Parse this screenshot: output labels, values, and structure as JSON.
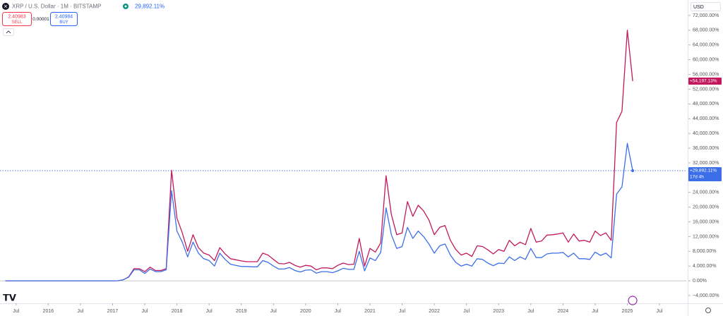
{
  "header": {
    "symbol": "XRP / U.S. Dollar · 1M · BITSTAMP",
    "change": "29,892.11%",
    "sell_price": "2.40983",
    "sell": "SELL",
    "spread": "0.00001",
    "buy_price": "2.40984",
    "buy": "BUY",
    "currency": "USD",
    "countdown": "17d 4h"
  },
  "price_labels": [
    "+54,197.13%",
    "+29,892.11%"
  ],
  "chart_data": {
    "type": "line",
    "grid": false,
    "x": [
      "2015-05",
      "2015-06",
      "2015-07",
      "2015-08",
      "2015-09",
      "2015-10",
      "2015-11",
      "2015-12",
      "2016-01",
      "2016-02",
      "2016-03",
      "2016-04",
      "2016-05",
      "2016-06",
      "2016-07",
      "2016-08",
      "2016-09",
      "2016-10",
      "2016-11",
      "2016-12",
      "2017-01",
      "2017-02",
      "2017-03",
      "2017-04",
      "2017-05",
      "2017-06",
      "2017-07",
      "2017-08",
      "2017-09",
      "2017-10",
      "2017-11",
      "2017-12",
      "2018-01",
      "2018-02",
      "2018-03",
      "2018-04",
      "2018-05",
      "2018-06",
      "2018-07",
      "2018-08",
      "2018-09",
      "2018-10",
      "2018-11",
      "2018-12",
      "2019-01",
      "2019-02",
      "2019-03",
      "2019-04",
      "2019-05",
      "2019-06",
      "2019-07",
      "2019-08",
      "2019-09",
      "2019-10",
      "2019-11",
      "2019-12",
      "2020-01",
      "2020-02",
      "2020-03",
      "2020-04",
      "2020-05",
      "2020-06",
      "2020-07",
      "2020-08",
      "2020-09",
      "2020-10",
      "2020-11",
      "2020-12",
      "2021-01",
      "2021-02",
      "2021-03",
      "2021-04",
      "2021-05",
      "2021-06",
      "2021-07",
      "2021-08",
      "2021-09",
      "2021-10",
      "2021-11",
      "2021-12",
      "2022-01",
      "2022-02",
      "2022-03",
      "2022-04",
      "2022-05",
      "2022-06",
      "2022-07",
      "2022-08",
      "2022-09",
      "2022-10",
      "2022-11",
      "2022-12",
      "2023-01",
      "2023-02",
      "2023-03",
      "2023-04",
      "2023-05",
      "2023-06",
      "2023-07",
      "2023-08",
      "2023-09",
      "2023-10",
      "2023-11",
      "2023-12",
      "2024-01",
      "2024-02",
      "2024-03",
      "2024-04",
      "2024-05",
      "2024-06",
      "2024-07",
      "2024-08",
      "2024-09",
      "2024-10",
      "2024-11",
      "2024-12",
      "2025-01",
      "2025-02"
    ],
    "series": [
      {
        "color": "#c2185b",
        "values": [
          0,
          0,
          0,
          0,
          0,
          0,
          0,
          0,
          0,
          0,
          0,
          0,
          0,
          0,
          0,
          0,
          0,
          0,
          0,
          0,
          0,
          20,
          300,
          1100,
          3300,
          3300,
          2500,
          3700,
          2800,
          2800,
          3300,
          30000,
          17000,
          13000,
          8000,
          12500,
          9000,
          7500,
          7000,
          5500,
          9000,
          7300,
          6000,
          5700,
          5400,
          5200,
          5200,
          5200,
          7500,
          7000,
          5800,
          4700,
          4600,
          5000,
          4200,
          3700,
          4200,
          4000,
          3000,
          3500,
          3500,
          3300,
          4200,
          4800,
          4400,
          4500,
          11500,
          4000,
          8800,
          7800,
          10300,
          28500,
          18000,
          12500,
          13000,
          21500,
          17500,
          20500,
          19000,
          16500,
          12500,
          14500,
          15000,
          11000,
          8500,
          7000,
          7500,
          6600,
          9500,
          9300,
          8400,
          7300,
          8500,
          8000,
          11000,
          9500,
          10500,
          9800,
          14200,
          10500,
          10800,
          12400,
          12500,
          12700,
          13000,
          10500,
          12700,
          10800,
          11000,
          10500,
          13500,
          12300,
          13000,
          11000,
          43000,
          46000,
          68000,
          54197.13
        ]
      },
      {
        "color": "#3b6ee8",
        "values": [
          0,
          0,
          0,
          0,
          0,
          0,
          0,
          0,
          0,
          0,
          0,
          0,
          0,
          0,
          0,
          0,
          0,
          0,
          0,
          0,
          0,
          20,
          300,
          1000,
          3000,
          3000,
          2000,
          3200,
          2500,
          2500,
          3000,
          24500,
          13500,
          10500,
          6500,
          10500,
          7500,
          6000,
          5500,
          4000,
          7500,
          5800,
          4500,
          4200,
          3900,
          3900,
          3800,
          3800,
          5500,
          5000,
          4000,
          3200,
          3200,
          3600,
          2800,
          2400,
          2900,
          3000,
          2100,
          2500,
          2500,
          2200,
          2700,
          3400,
          3100,
          3100,
          8000,
          2700,
          6200,
          5500,
          7700,
          19800,
          12500,
          8800,
          9300,
          14500,
          11500,
          13500,
          12000,
          10000,
          7500,
          9500,
          10000,
          7000,
          5000,
          4000,
          4500,
          4000,
          6000,
          5800,
          4800,
          4100,
          4800,
          4700,
          6500,
          5500,
          6500,
          5800,
          8800,
          6300,
          6300,
          7300,
          7500,
          7500,
          7700,
          6500,
          7500,
          6000,
          6000,
          5800,
          7800,
          6900,
          7500,
          6200,
          23500,
          25500,
          37300,
          29892.11
        ]
      }
    ],
    "xlim": [
      "2015-04",
      "2025-12"
    ],
    "xticks": [
      {
        "value": "2015-07",
        "label": "Jul"
      },
      {
        "value": "2016-01",
        "label": "2016"
      },
      {
        "value": "2016-07",
        "label": "Jul"
      },
      {
        "value": "2017-01",
        "label": "2017"
      },
      {
        "value": "2017-07",
        "label": "Jul"
      },
      {
        "value": "2018-01",
        "label": "2018"
      },
      {
        "value": "2018-07",
        "label": "Jul"
      },
      {
        "value": "2019-01",
        "label": "2019"
      },
      {
        "value": "2019-07",
        "label": "Jul"
      },
      {
        "value": "2020-01",
        "label": "2020"
      },
      {
        "value": "2020-07",
        "label": "Jul"
      },
      {
        "value": "2021-01",
        "label": "2021"
      },
      {
        "value": "2021-07",
        "label": "Jul"
      },
      {
        "value": "2022-01",
        "label": "2022"
      },
      {
        "value": "2022-07",
        "label": "Jul"
      },
      {
        "value": "2023-01",
        "label": "2023"
      },
      {
        "value": "2023-07",
        "label": "Jul"
      },
      {
        "value": "2024-01",
        "label": "2024"
      },
      {
        "value": "2024-07",
        "label": "Jul"
      },
      {
        "value": "2025-01",
        "label": "2025"
      },
      {
        "value": "2025-07",
        "label": "Jul"
      }
    ],
    "ylim": [
      -6100,
      76200
    ],
    "yticks": [
      {
        "value": -4000,
        "label": "−4,000.00%"
      },
      {
        "value": 0,
        "label": "0.00%"
      },
      {
        "value": 4000,
        "label": "4,000.00%"
      },
      {
        "value": 8000,
        "label": "8,000.00%"
      },
      {
        "value": 12000,
        "label": "12,000.00%"
      },
      {
        "value": 16000,
        "label": "16,000.00%"
      },
      {
        "value": 20000,
        "label": "20,000.00%"
      },
      {
        "value": 24000,
        "label": "24,000.00%"
      },
      {
        "value": 28000,
        "label": "28,000.00%"
      },
      {
        "value": 32000,
        "label": "32,000.00%"
      },
      {
        "value": 36000,
        "label": "36,000.00%"
      },
      {
        "value": 40000,
        "label": "40,000.00%"
      },
      {
        "value": 44000,
        "label": "44,000.00%"
      },
      {
        "value": 48000,
        "label": "48,000.00%"
      },
      {
        "value": 52000,
        "label": "52,000.00%"
      },
      {
        "value": 56000,
        "label": "56,000.00%"
      },
      {
        "value": 60000,
        "label": "60,000.00%"
      },
      {
        "value": 64000,
        "label": "64,000.00%"
      },
      {
        "value": 68000,
        "label": "68,000.00%"
      },
      {
        "value": 72000,
        "label": "72,000.00%"
      }
    ]
  }
}
